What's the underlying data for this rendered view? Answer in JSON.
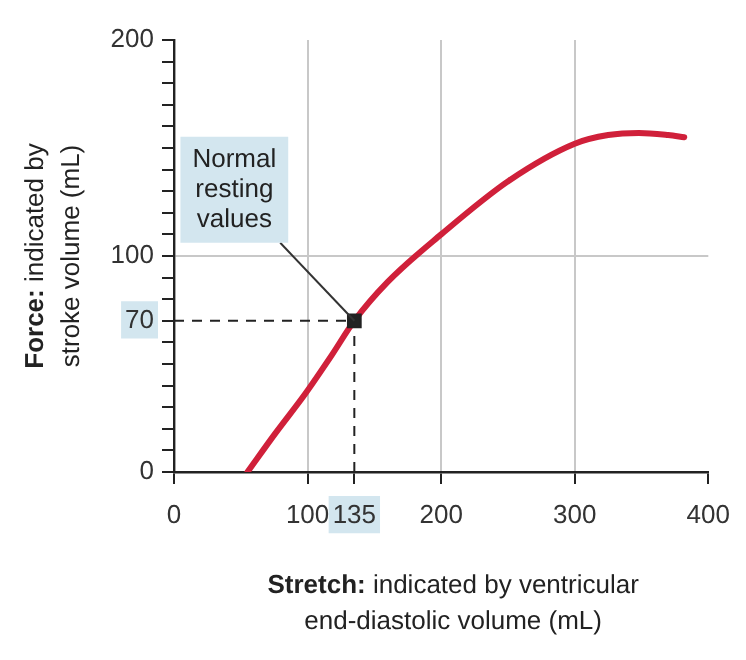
{
  "chart_data": {
    "type": "line",
    "xlabel": "Stretch: indicated by ventricular end-diastolic volume (mL)",
    "ylabel": "Force: indicated by stroke volume (mL)",
    "xlim": [
      0,
      400
    ],
    "ylim": [
      0,
      200
    ],
    "xticks": [
      0,
      100,
      135,
      200,
      300,
      400
    ],
    "yticks": [
      0,
      {
        "value": 10,
        "label": null
      },
      {
        "value": 20,
        "label": null
      },
      {
        "value": 30,
        "label": null
      },
      {
        "value": 40,
        "label": null
      },
      {
        "value": 50,
        "label": null
      },
      {
        "value": 60,
        "label": null
      },
      70,
      {
        "value": 80,
        "label": null
      },
      {
        "value": 90,
        "label": null
      },
      100,
      {
        "value": 110,
        "label": null
      },
      {
        "value": 120,
        "label": null
      },
      {
        "value": 130,
        "label": null
      },
      {
        "value": 140,
        "label": null
      },
      {
        "value": 150,
        "label": null
      },
      {
        "value": 160,
        "label": null
      },
      {
        "value": 170,
        "label": null
      },
      {
        "value": 180,
        "label": null
      },
      {
        "value": 190,
        "label": null
      },
      200
    ],
    "grid": true,
    "legend": false,
    "marker": "none",
    "line_style": "solid",
    "series": [
      {
        "color": "#d0203a",
        "x": [
          55,
          76,
          98,
          118,
          135,
          160,
          200,
          251,
          300,
          325,
          348,
          370,
          382
        ],
        "values": [
          0,
          18,
          36,
          54,
          70,
          88,
          110,
          135,
          152,
          156,
          157,
          156,
          155
        ]
      },
      {
        "type": "scatter",
        "marker": "square",
        "color": "#222222",
        "x": [
          135
        ],
        "values": [
          70
        ]
      }
    ],
    "ref_lines": [
      {
        "axis": "x",
        "value": 135,
        "line_style": "dashed",
        "color": "#222222"
      },
      {
        "axis": "y",
        "value": 70,
        "line_style": "dashed",
        "color": "#222222"
      }
    ],
    "annotations": [
      {
        "text": "Normal resting values",
        "x": 135,
        "y": 70
      }
    ]
  }
}
